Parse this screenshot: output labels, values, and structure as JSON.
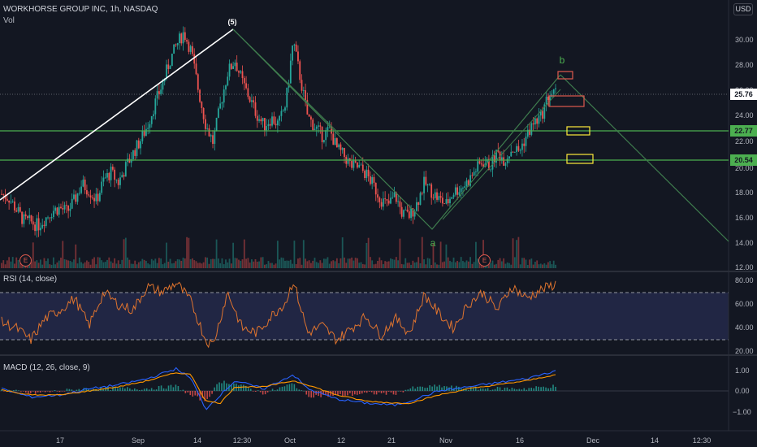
{
  "header": {
    "title": "WORKHORSE GROUP INC, 1h, NASDAQ",
    "vol_label": "Vol",
    "currency": "USD"
  },
  "price_axis": {
    "ticks": [
      "30.00",
      "28.00",
      "26.00",
      "24.00",
      "22.00",
      "20.00",
      "18.00",
      "16.00",
      "14.00",
      "12.00"
    ],
    "tags": [
      {
        "value": "25.76",
        "color": "#ffffff"
      },
      {
        "value": "22.77",
        "color": "#4caf50"
      },
      {
        "value": "20.54",
        "color": "#4caf50"
      }
    ]
  },
  "waves": {
    "five": "(5)",
    "a": "a",
    "b": "b"
  },
  "earnings_markers": [
    "E",
    "E"
  ],
  "rsi": {
    "label": "RSI (14, close)",
    "ticks": [
      "80.00",
      "60.00",
      "40.00",
      "20.00"
    ]
  },
  "macd": {
    "label": "MACD (12, 26, close, 9)",
    "ticks": [
      "1.00",
      "0.00",
      "−1.00"
    ]
  },
  "time_axis": [
    "17",
    "Sep",
    "14",
    "12:30",
    "Oct",
    "12",
    "21",
    "Nov",
    "16",
    "Dec",
    "14",
    "12:30"
  ],
  "chart_data": {
    "type": "candlestick",
    "title": "WORKHORSE GROUP INC, 1h, NASDAQ",
    "y_range": [
      12,
      32
    ],
    "last_price": 25.76,
    "horizontal_levels": [
      22.77,
      20.54
    ],
    "wave_points": [
      {
        "label": "(5)",
        "value": 31.0
      },
      {
        "label": "a",
        "value": 15.0
      },
      {
        "label": "b",
        "value": 27.0
      }
    ],
    "price_path": [
      [
        0,
        17.8
      ],
      [
        2,
        17.5
      ],
      [
        4,
        16.6
      ],
      [
        6,
        15.7
      ],
      [
        8,
        15.6
      ],
      [
        10,
        15.3
      ],
      [
        12,
        15.9
      ],
      [
        14,
        16.5
      ],
      [
        16,
        16.7
      ],
      [
        18,
        16.4
      ],
      [
        20,
        17.3
      ],
      [
        22,
        18.6
      ],
      [
        24,
        18.1
      ],
      [
        26,
        17.3
      ],
      [
        28,
        18.9
      ],
      [
        30,
        19.5
      ],
      [
        32,
        18.7
      ],
      [
        34,
        19.9
      ],
      [
        36,
        21.0
      ],
      [
        38,
        22.0
      ],
      [
        40,
        23.2
      ],
      [
        42,
        24.9
      ],
      [
        44,
        26.4
      ],
      [
        46,
        28.2
      ],
      [
        48,
        29.6
      ],
      [
        50,
        30.6
      ],
      [
        52,
        29.1
      ],
      [
        54,
        26.0
      ],
      [
        56,
        23.3
      ],
      [
        58,
        21.9
      ],
      [
        60,
        24.8
      ],
      [
        62,
        27.4
      ],
      [
        64,
        28.4
      ],
      [
        66,
        26.7
      ],
      [
        68,
        25.4
      ],
      [
        70,
        24.1
      ],
      [
        72,
        23.2
      ],
      [
        74,
        23.8
      ],
      [
        76,
        23.3
      ],
      [
        78,
        25.0
      ],
      [
        80,
        29.9
      ],
      [
        82,
        26.9
      ],
      [
        84,
        23.9
      ],
      [
        86,
        23.1
      ],
      [
        88,
        22.4
      ],
      [
        90,
        22.9
      ],
      [
        92,
        21.4
      ],
      [
        94,
        20.8
      ],
      [
        96,
        20.0
      ],
      [
        98,
        19.9
      ],
      [
        100,
        19.4
      ],
      [
        102,
        18.5
      ],
      [
        104,
        17.4
      ],
      [
        106,
        16.9
      ],
      [
        108,
        17.7
      ],
      [
        110,
        16.2
      ],
      [
        112,
        16.1
      ],
      [
        114,
        17.1
      ],
      [
        116,
        18.7
      ],
      [
        118,
        18.0
      ],
      [
        120,
        17.4
      ],
      [
        122,
        17.0
      ],
      [
        124,
        18.0
      ],
      [
        126,
        18.3
      ],
      [
        128,
        18.8
      ],
      [
        130,
        19.7
      ],
      [
        132,
        20.4
      ],
      [
        134,
        20.0
      ],
      [
        136,
        21.1
      ],
      [
        138,
        20.5
      ],
      [
        140,
        21.4
      ],
      [
        142,
        21.2
      ],
      [
        144,
        22.4
      ],
      [
        146,
        23.4
      ],
      [
        148,
        23.9
      ],
      [
        150,
        25.6
      ],
      [
        152,
        25.76
      ]
    ],
    "rsi": {
      "range": [
        20,
        80
      ],
      "levels": [
        70,
        30
      ],
      "path": [
        [
          0,
          45
        ],
        [
          4,
          40
        ],
        [
          8,
          30
        ],
        [
          12,
          48
        ],
        [
          16,
          55
        ],
        [
          20,
          65
        ],
        [
          24,
          42
        ],
        [
          28,
          70
        ],
        [
          32,
          60
        ],
        [
          36,
          55
        ],
        [
          40,
          75
        ],
        [
          44,
          70
        ],
        [
          48,
          78
        ],
        [
          52,
          62
        ],
        [
          56,
          30
        ],
        [
          58,
          26
        ],
        [
          62,
          70
        ],
        [
          66,
          40
        ],
        [
          70,
          36
        ],
        [
          74,
          50
        ],
        [
          78,
          62
        ],
        [
          80,
          80
        ],
        [
          84,
          36
        ],
        [
          88,
          42
        ],
        [
          92,
          30
        ],
        [
          96,
          40
        ],
        [
          100,
          50
        ],
        [
          104,
          34
        ],
        [
          108,
          48
        ],
        [
          112,
          36
        ],
        [
          116,
          68
        ],
        [
          120,
          52
        ],
        [
          124,
          40
        ],
        [
          128,
          60
        ],
        [
          132,
          70
        ],
        [
          136,
          55
        ],
        [
          140,
          75
        ],
        [
          144,
          65
        ],
        [
          148,
          72
        ],
        [
          152,
          77
        ]
      ]
    },
    "macd": {
      "range": [
        -1.5,
        1.3
      ],
      "macd_line": [
        [
          0,
          0.1
        ],
        [
          8,
          -0.3
        ],
        [
          16,
          -0.2
        ],
        [
          24,
          0.1
        ],
        [
          32,
          0.3
        ],
        [
          40,
          0.6
        ],
        [
          48,
          1.1
        ],
        [
          52,
          0.6
        ],
        [
          56,
          -0.9
        ],
        [
          60,
          -0.2
        ],
        [
          64,
          0.5
        ],
        [
          72,
          0.1
        ],
        [
          80,
          0.8
        ],
        [
          84,
          0.1
        ],
        [
          92,
          -0.4
        ],
        [
          100,
          -0.6
        ],
        [
          108,
          -0.7
        ],
        [
          112,
          -0.5
        ],
        [
          120,
          0.0
        ],
        [
          128,
          0.2
        ],
        [
          136,
          0.4
        ],
        [
          144,
          0.6
        ],
        [
          152,
          1.0
        ]
      ],
      "signal_line": [
        [
          0,
          0.05
        ],
        [
          8,
          -0.2
        ],
        [
          16,
          -0.2
        ],
        [
          24,
          0.0
        ],
        [
          32,
          0.2
        ],
        [
          40,
          0.5
        ],
        [
          48,
          0.9
        ],
        [
          52,
          0.8
        ],
        [
          56,
          -0.5
        ],
        [
          60,
          -0.6
        ],
        [
          64,
          0.2
        ],
        [
          72,
          0.2
        ],
        [
          80,
          0.5
        ],
        [
          84,
          0.3
        ],
        [
          92,
          -0.2
        ],
        [
          100,
          -0.5
        ],
        [
          108,
          -0.6
        ],
        [
          112,
          -0.6
        ],
        [
          120,
          -0.2
        ],
        [
          128,
          0.1
        ],
        [
          136,
          0.3
        ],
        [
          144,
          0.5
        ],
        [
          152,
          0.8
        ]
      ]
    }
  },
  "colors": {
    "background": "#131722",
    "up": "#26a69a",
    "down": "#ef5350",
    "level_line": "#4caf50",
    "impulse_line": "#ffffff",
    "channel": "#3f7d4e",
    "rsi_line": "#e0742e",
    "rsi_band": "#2a2e5a",
    "macd_line": "#2962ff",
    "signal_line": "#ff9800"
  }
}
